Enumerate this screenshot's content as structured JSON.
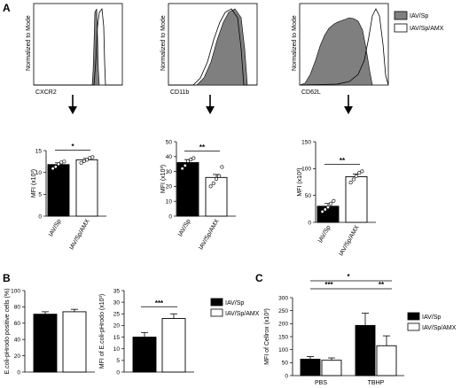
{
  "panels": {
    "A": "A",
    "B": "B",
    "C": "C"
  },
  "legend": {
    "sp": "IAV/Sp",
    "amx": "IAV/Sp/AMX"
  },
  "colors": {
    "sp": "#000000",
    "amx": "#ffffff",
    "hist_fill": "#7f7f7f"
  },
  "histograms": [
    {
      "marker": "CXCR2",
      "ylabel": "Normalized to Mode"
    },
    {
      "marker": "CD11b",
      "ylabel": "Normalized to Mode"
    },
    {
      "marker": "CD62L",
      "ylabel": "Normalized to Mode"
    }
  ],
  "chart_data": [
    {
      "type": "bar",
      "panel": "A",
      "ylabel": "MFI (x10³)",
      "categories": [
        "IAV/Sp",
        "IAV/Sp/AMX"
      ],
      "values": [
        11.8,
        12.9
      ],
      "errors": [
        0.4,
        0.3
      ],
      "ylim": [
        0,
        15
      ],
      "yticks": [
        "0",
        "5",
        "10",
        "15"
      ],
      "points": [
        [
          10.9,
          11.3,
          11.9,
          12.3,
          12.5
        ],
        [
          12.2,
          12.6,
          12.9,
          13.3,
          13.5
        ]
      ],
      "significance": "*"
    },
    {
      "type": "bar",
      "panel": "A",
      "ylabel": "MFI (x10³)",
      "categories": [
        "IAV/Sp",
        "IAV/Sp/AMX"
      ],
      "values": [
        36,
        26
      ],
      "errors": [
        2,
        2
      ],
      "ylim": [
        0,
        50
      ],
      "yticks": [
        "0",
        "10",
        "20",
        "30",
        "40",
        "50"
      ],
      "points": [
        [
          32,
          34,
          37,
          38,
          39
        ],
        [
          20,
          22,
          25,
          27,
          33
        ]
      ],
      "significance": "**"
    },
    {
      "type": "bar",
      "panel": "A",
      "ylabel": "MFI (x10³)",
      "categories": [
        "IAV/Sp",
        "IAV/Sp/AMX"
      ],
      "values": [
        30,
        85
      ],
      "errors": [
        5,
        5
      ],
      "ylim": [
        0,
        150
      ],
      "yticks": [
        "0",
        "50",
        "100",
        "150"
      ],
      "points": [
        [
          20,
          24,
          28,
          35,
          40
        ],
        [
          74,
          80,
          86,
          92,
          95
        ]
      ],
      "significance": "**"
    },
    {
      "type": "bar",
      "panel": "B",
      "ylabel": "E.coli-pHrodo positive cells (%)",
      "categories": [
        "",
        ""
      ],
      "values": [
        71,
        74
      ],
      "errors": [
        3,
        3
      ],
      "ylim": [
        0,
        100
      ],
      "yticks": [
        "0",
        "20",
        "40",
        "60",
        "80",
        "100"
      ]
    },
    {
      "type": "bar",
      "panel": "B",
      "ylabel": "MFI of E.coli-pHrodo (x10³)",
      "categories": [
        "",
        ""
      ],
      "values": [
        15,
        23
      ],
      "errors": [
        2,
        2
      ],
      "ylim": [
        0,
        35
      ],
      "yticks": [
        "0",
        "5",
        "10",
        "15",
        "20",
        "25",
        "30",
        "35"
      ],
      "significance": "***"
    },
    {
      "type": "bar",
      "panel": "C",
      "ylabel": "MFI of Cellrox (x10³)",
      "categories": [
        "PBS",
        "TBHP"
      ],
      "series": [
        {
          "name": "IAV/Sp",
          "values": [
            63,
            193
          ],
          "errors": [
            10,
            47
          ]
        },
        {
          "name": "IAV/Sp/AMX",
          "values": [
            59,
            115
          ],
          "errors": [
            9,
            38
          ]
        }
      ],
      "ylim": [
        0,
        300
      ],
      "yticks": [
        "0",
        "50",
        "100",
        "150",
        "200",
        "250",
        "300"
      ],
      "significance": [
        {
          "label": "***"
        },
        {
          "label": "*"
        },
        {
          "label": "**"
        }
      ]
    }
  ]
}
